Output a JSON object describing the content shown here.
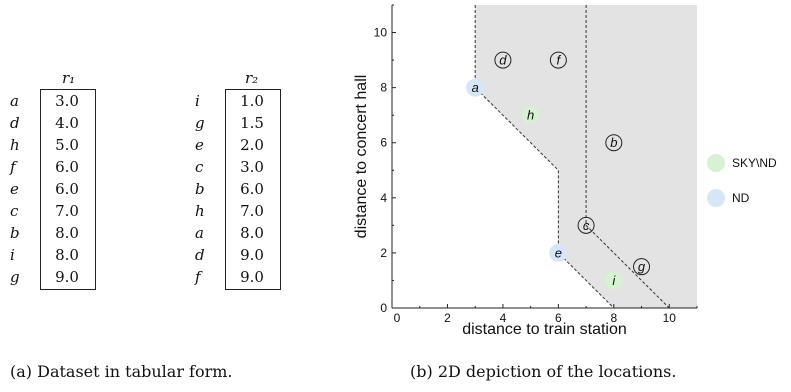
{
  "table_r1": {
    "header": "r₁",
    "rows": [
      {
        "label": "a",
        "value": "3.0"
      },
      {
        "label": "d",
        "value": "4.0"
      },
      {
        "label": "h",
        "value": "5.0"
      },
      {
        "label": "f",
        "value": "6.0"
      },
      {
        "label": "e",
        "value": "6.0"
      },
      {
        "label": "c",
        "value": "7.0"
      },
      {
        "label": "b",
        "value": "8.0"
      },
      {
        "label": "i",
        "value": "8.0"
      },
      {
        "label": "g",
        "value": "9.0"
      }
    ]
  },
  "table_r2": {
    "header": "r₂",
    "rows": [
      {
        "label": "i",
        "value": "1.0"
      },
      {
        "label": "g",
        "value": "1.5"
      },
      {
        "label": "e",
        "value": "2.0"
      },
      {
        "label": "c",
        "value": "3.0"
      },
      {
        "label": "b",
        "value": "6.0"
      },
      {
        "label": "h",
        "value": "7.0"
      },
      {
        "label": "a",
        "value": "8.0"
      },
      {
        "label": "d",
        "value": "9.0"
      },
      {
        "label": "f",
        "value": "9.0"
      }
    ]
  },
  "captions": {
    "a": "(a) Dataset in tabular form.",
    "b": "(b) 2D depiction of the locations."
  },
  "chart_data": {
    "type": "scatter",
    "xlabel": "distance to train station",
    "ylabel": "distance to concert hall",
    "xlim": [
      0,
      11
    ],
    "ylim": [
      0,
      11
    ],
    "xticks": [
      0,
      2,
      4,
      6,
      8,
      10
    ],
    "yticks": [
      0,
      2,
      4,
      6,
      8,
      10
    ],
    "points": [
      {
        "label": "a",
        "x": 3,
        "y": 8,
        "group": "ND"
      },
      {
        "label": "d",
        "x": 4,
        "y": 9,
        "group": "other"
      },
      {
        "label": "h",
        "x": 5,
        "y": 7,
        "group": "SKY\\ND"
      },
      {
        "label": "f",
        "x": 6,
        "y": 9,
        "group": "other"
      },
      {
        "label": "e",
        "x": 6,
        "y": 2,
        "group": "ND"
      },
      {
        "label": "c",
        "x": 7,
        "y": 3,
        "group": "other"
      },
      {
        "label": "b",
        "x": 8,
        "y": 6,
        "group": "other"
      },
      {
        "label": "i",
        "x": 8,
        "y": 1,
        "group": "SKY\\ND"
      },
      {
        "label": "g",
        "x": 9,
        "y": 1.5,
        "group": "other"
      }
    ],
    "legend": {
      "placement": "right",
      "items": [
        {
          "name": "SKY\\ND",
          "color": "#d7f2d3"
        },
        {
          "name": "ND",
          "color": "#d4e6f8"
        }
      ]
    },
    "shaded_region_color": "#e3e3e3",
    "dashed_lines": [
      [
        [
          3,
          11
        ],
        [
          3,
          8
        ],
        [
          4,
          7
        ],
        [
          6,
          5
        ],
        [
          6,
          2
        ],
        [
          8,
          0
        ]
      ],
      [
        [
          7,
          11
        ],
        [
          7,
          3
        ],
        [
          10,
          0
        ]
      ]
    ]
  }
}
